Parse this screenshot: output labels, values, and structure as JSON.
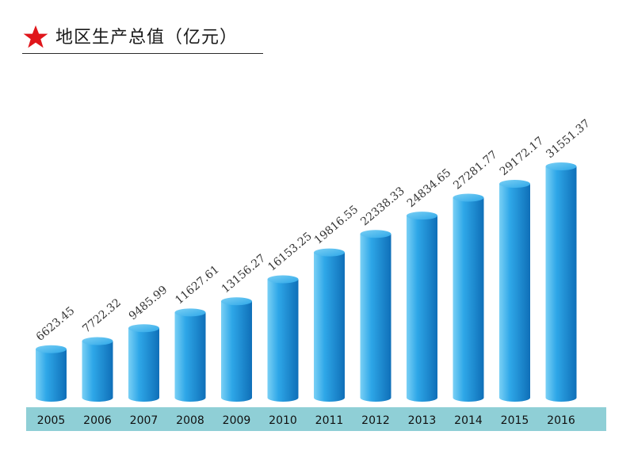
{
  "title": "地区生产总值（亿元）",
  "colors": {
    "accent_star": "#e0161b",
    "bar_light": "#7ad0f5",
    "bar_mid": "#2ea7e8",
    "bar_dark": "#0f6fb8",
    "axis_band": "#8fcfd6"
  },
  "chart_data": {
    "type": "bar",
    "style": "3d-cylinder",
    "title": "地区生产总值（亿元）",
    "categories": [
      "2005",
      "2006",
      "2007",
      "2008",
      "2009",
      "2010",
      "2011",
      "2012",
      "2013",
      "2014",
      "2015",
      "2016"
    ],
    "values": [
      6623.45,
      7722.32,
      9485.99,
      11627.61,
      13156.27,
      16153.25,
      19816.55,
      22338.33,
      24834.65,
      27281.77,
      29172.17,
      31551.37
    ],
    "value_labels": [
      "6623.45",
      "7722.32",
      "9485.99",
      "11627.61",
      "13156.27",
      "16153.25",
      "19816.55",
      "22338.33",
      "24834.65",
      "27281.77",
      "29172.17",
      "31551.37"
    ],
    "xlabel": "",
    "ylabel": "",
    "grid": false,
    "legend": "none"
  }
}
